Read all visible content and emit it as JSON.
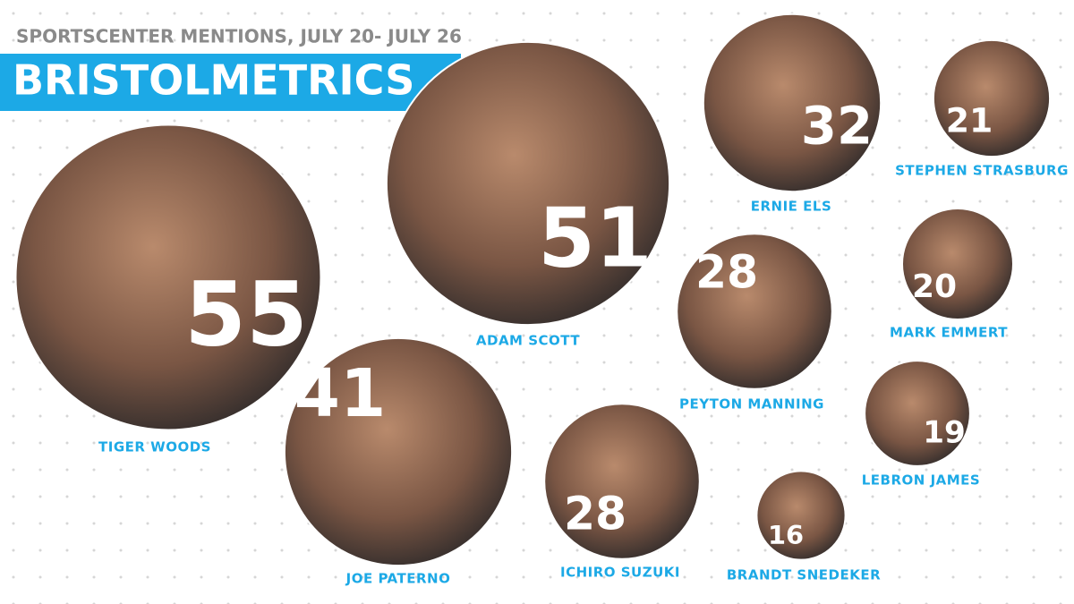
{
  "chart_data": {
    "type": "bubble",
    "subtitle": "SPORTSCENTER MENTIONS, JULY 20- JULY 26",
    "title": "BRISTOLMETRICS",
    "categories": [
      "TIGER WOODS",
      "ADAM SCOTT",
      "JOE PATERNO",
      "ERNIE ELS",
      "PEYTON MANNING",
      "ICHIRO SUZUKI",
      "STEPHEN STRASBURG",
      "MARK EMMERT",
      "LEBRON JAMES",
      "BRANDT SNEDEKER"
    ],
    "values": [
      55,
      51,
      41,
      32,
      28,
      28,
      21,
      20,
      19,
      16
    ],
    "color": "#1ca9e6"
  }
}
